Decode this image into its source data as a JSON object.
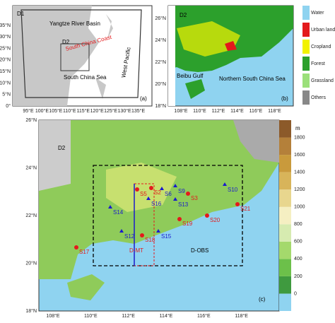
{
  "panel_a": {
    "label": "(a)",
    "d1": "D1",
    "basin": "Yangtze River Basin",
    "d2": "D2",
    "coast": "South China Coast",
    "sea": "South China Sea",
    "pacific": "West Pacific",
    "x_ticks": [
      "95°E",
      "100°E",
      "105°E",
      "110°E",
      "115°E",
      "120°E",
      "125°E",
      "130°E",
      "135°E"
    ],
    "y_ticks": [
      "35°N",
      "30°N",
      "25°N",
      "20°N",
      "15°N",
      "10°N",
      "5°N",
      "0°"
    ]
  },
  "panel_b": {
    "label": "(b)",
    "d2": "D2",
    "gulf": "Beibu Gulf",
    "sea": "Northern South China Sea",
    "x_ticks": [
      "108°E",
      "110°E",
      "112°E",
      "114°E",
      "116°E",
      "118°E"
    ],
    "y_ticks": [
      "26°N",
      "24°N",
      "22°N",
      "20°N",
      "18°N"
    ],
    "legend": [
      {
        "name": "Water",
        "color": "#8fd3f0"
      },
      {
        "name": "Urban land",
        "color": "#e31a1c"
      },
      {
        "name": "Cropland",
        "color": "#f2f200"
      },
      {
        "name": "Forest",
        "color": "#2ca02c"
      },
      {
        "name": "Grassland",
        "color": "#9be07a"
      },
      {
        "name": "Others",
        "color": "#888888"
      }
    ]
  },
  "panel_c": {
    "label": "(c)",
    "d2": "D2",
    "d_mt": "D-MT",
    "d_obs": "D-OBS",
    "x_ticks": [
      "108°E",
      "110°E",
      "112°E",
      "114°E",
      "116°E",
      "118°E"
    ],
    "y_ticks": [
      "26°N",
      "24°N",
      "22°N",
      "20°N",
      "18°N"
    ],
    "stations": [
      "S17",
      "S18",
      "S19",
      "S20",
      "S21",
      "S14",
      "S12",
      "S15",
      "S16",
      "S9",
      "S10",
      "S13",
      "S6",
      "S2",
      "S3",
      "S5"
    ],
    "colorbar": {
      "unit": "m",
      "ticks": [
        0,
        200,
        400,
        600,
        800,
        1000,
        1200,
        1400,
        1600,
        1800
      ]
    }
  }
}
